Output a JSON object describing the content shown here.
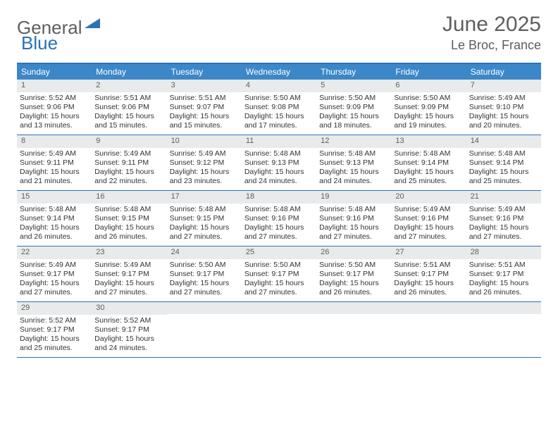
{
  "logo": {
    "text1": "General",
    "text2": "Blue"
  },
  "title": "June 2025",
  "location": "Le Broc, France",
  "colors": {
    "header_bg": "#3b87c8",
    "border": "#2a72b5",
    "daynum_bg": "#e9eaeb",
    "text_gray": "#5e5e5e",
    "body_text": "#333333"
  },
  "day_headers": [
    "Sunday",
    "Monday",
    "Tuesday",
    "Wednesday",
    "Thursday",
    "Friday",
    "Saturday"
  ],
  "weeks": [
    [
      {
        "n": "1",
        "sr": "5:52 AM",
        "ss": "9:06 PM",
        "dl1": "Daylight: 15 hours",
        "dl2": "and 13 minutes."
      },
      {
        "n": "2",
        "sr": "5:51 AM",
        "ss": "9:06 PM",
        "dl1": "Daylight: 15 hours",
        "dl2": "and 15 minutes."
      },
      {
        "n": "3",
        "sr": "5:51 AM",
        "ss": "9:07 PM",
        "dl1": "Daylight: 15 hours",
        "dl2": "and 15 minutes."
      },
      {
        "n": "4",
        "sr": "5:50 AM",
        "ss": "9:08 PM",
        "dl1": "Daylight: 15 hours",
        "dl2": "and 17 minutes."
      },
      {
        "n": "5",
        "sr": "5:50 AM",
        "ss": "9:09 PM",
        "dl1": "Daylight: 15 hours",
        "dl2": "and 18 minutes."
      },
      {
        "n": "6",
        "sr": "5:50 AM",
        "ss": "9:09 PM",
        "dl1": "Daylight: 15 hours",
        "dl2": "and 19 minutes."
      },
      {
        "n": "7",
        "sr": "5:49 AM",
        "ss": "9:10 PM",
        "dl1": "Daylight: 15 hours",
        "dl2": "and 20 minutes."
      }
    ],
    [
      {
        "n": "8",
        "sr": "5:49 AM",
        "ss": "9:11 PM",
        "dl1": "Daylight: 15 hours",
        "dl2": "and 21 minutes."
      },
      {
        "n": "9",
        "sr": "5:49 AM",
        "ss": "9:11 PM",
        "dl1": "Daylight: 15 hours",
        "dl2": "and 22 minutes."
      },
      {
        "n": "10",
        "sr": "5:49 AM",
        "ss": "9:12 PM",
        "dl1": "Daylight: 15 hours",
        "dl2": "and 23 minutes."
      },
      {
        "n": "11",
        "sr": "5:48 AM",
        "ss": "9:13 PM",
        "dl1": "Daylight: 15 hours",
        "dl2": "and 24 minutes."
      },
      {
        "n": "12",
        "sr": "5:48 AM",
        "ss": "9:13 PM",
        "dl1": "Daylight: 15 hours",
        "dl2": "and 24 minutes."
      },
      {
        "n": "13",
        "sr": "5:48 AM",
        "ss": "9:14 PM",
        "dl1": "Daylight: 15 hours",
        "dl2": "and 25 minutes."
      },
      {
        "n": "14",
        "sr": "5:48 AM",
        "ss": "9:14 PM",
        "dl1": "Daylight: 15 hours",
        "dl2": "and 25 minutes."
      }
    ],
    [
      {
        "n": "15",
        "sr": "5:48 AM",
        "ss": "9:14 PM",
        "dl1": "Daylight: 15 hours",
        "dl2": "and 26 minutes."
      },
      {
        "n": "16",
        "sr": "5:48 AM",
        "ss": "9:15 PM",
        "dl1": "Daylight: 15 hours",
        "dl2": "and 26 minutes."
      },
      {
        "n": "17",
        "sr": "5:48 AM",
        "ss": "9:15 PM",
        "dl1": "Daylight: 15 hours",
        "dl2": "and 27 minutes."
      },
      {
        "n": "18",
        "sr": "5:48 AM",
        "ss": "9:16 PM",
        "dl1": "Daylight: 15 hours",
        "dl2": "and 27 minutes."
      },
      {
        "n": "19",
        "sr": "5:48 AM",
        "ss": "9:16 PM",
        "dl1": "Daylight: 15 hours",
        "dl2": "and 27 minutes."
      },
      {
        "n": "20",
        "sr": "5:49 AM",
        "ss": "9:16 PM",
        "dl1": "Daylight: 15 hours",
        "dl2": "and 27 minutes."
      },
      {
        "n": "21",
        "sr": "5:49 AM",
        "ss": "9:16 PM",
        "dl1": "Daylight: 15 hours",
        "dl2": "and 27 minutes."
      }
    ],
    [
      {
        "n": "22",
        "sr": "5:49 AM",
        "ss": "9:17 PM",
        "dl1": "Daylight: 15 hours",
        "dl2": "and 27 minutes."
      },
      {
        "n": "23",
        "sr": "5:49 AM",
        "ss": "9:17 PM",
        "dl1": "Daylight: 15 hours",
        "dl2": "and 27 minutes."
      },
      {
        "n": "24",
        "sr": "5:50 AM",
        "ss": "9:17 PM",
        "dl1": "Daylight: 15 hours",
        "dl2": "and 27 minutes."
      },
      {
        "n": "25",
        "sr": "5:50 AM",
        "ss": "9:17 PM",
        "dl1": "Daylight: 15 hours",
        "dl2": "and 27 minutes."
      },
      {
        "n": "26",
        "sr": "5:50 AM",
        "ss": "9:17 PM",
        "dl1": "Daylight: 15 hours",
        "dl2": "and 26 minutes."
      },
      {
        "n": "27",
        "sr": "5:51 AM",
        "ss": "9:17 PM",
        "dl1": "Daylight: 15 hours",
        "dl2": "and 26 minutes."
      },
      {
        "n": "28",
        "sr": "5:51 AM",
        "ss": "9:17 PM",
        "dl1": "Daylight: 15 hours",
        "dl2": "and 26 minutes."
      }
    ],
    [
      {
        "n": "29",
        "sr": "5:52 AM",
        "ss": "9:17 PM",
        "dl1": "Daylight: 15 hours",
        "dl2": "and 25 minutes."
      },
      {
        "n": "30",
        "sr": "5:52 AM",
        "ss": "9:17 PM",
        "dl1": "Daylight: 15 hours",
        "dl2": "and 24 minutes."
      },
      null,
      null,
      null,
      null,
      null
    ]
  ]
}
